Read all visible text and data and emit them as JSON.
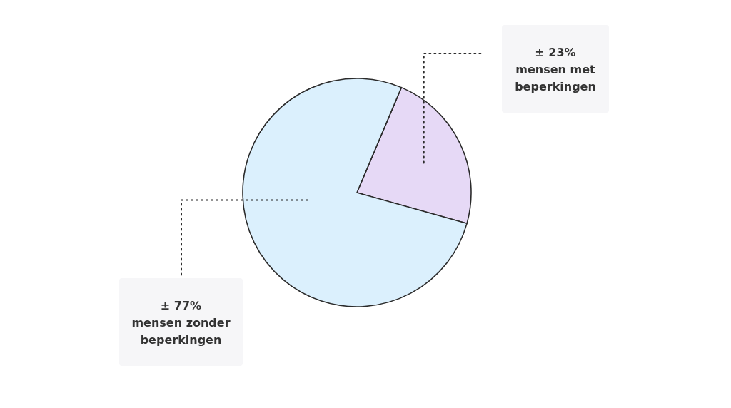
{
  "chart_data": {
    "type": "pie",
    "categories": [
      "mensen met beperkingen",
      "mensen zonder beperkingen"
    ],
    "values": [
      23,
      77
    ],
    "colors": [
      "#e6d9f6",
      "#dbf0fd"
    ],
    "value_labels": [
      "± 23%",
      "± 77%"
    ]
  }
}
